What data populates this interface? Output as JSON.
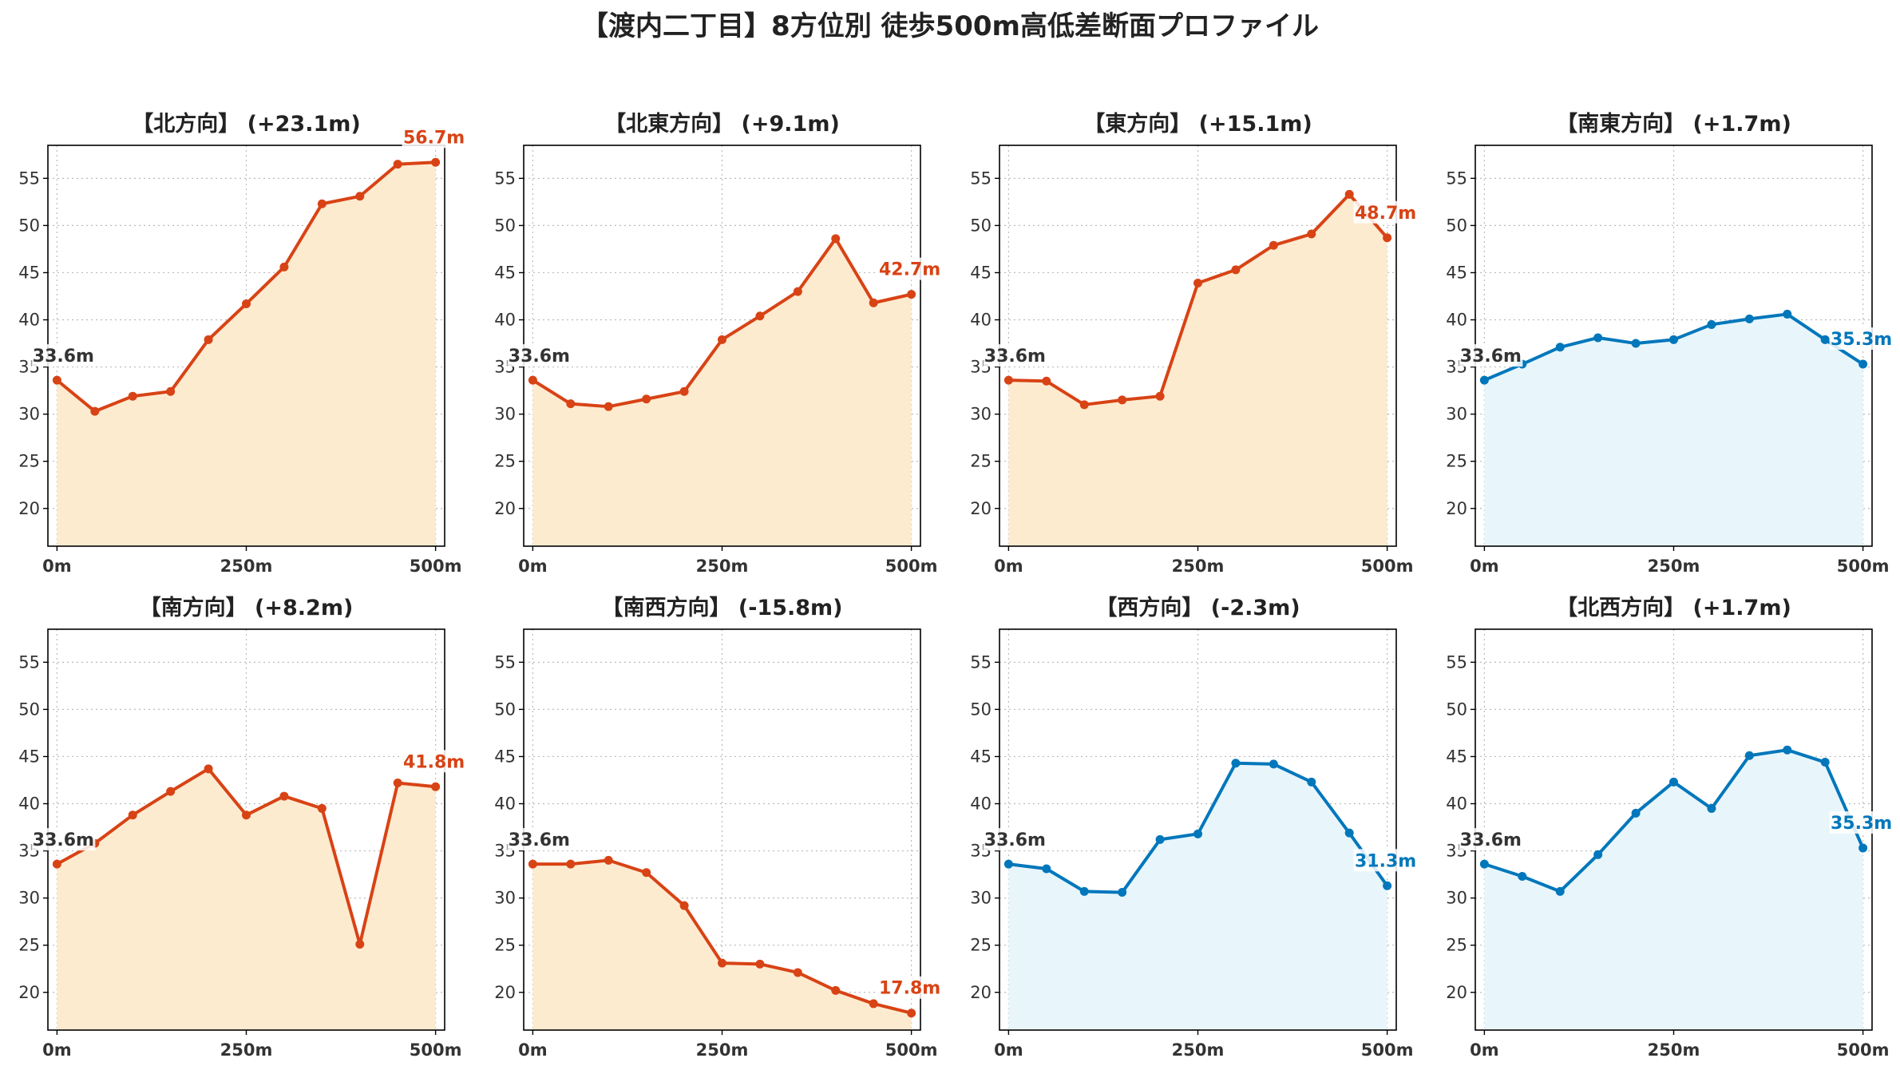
{
  "figure": {
    "title": "【渡内二丁目】8方位別 徒歩500m高低差断面プロファイル"
  },
  "colors": {
    "up": "#d84315",
    "up_fill": "#fdebd0",
    "flat": "#0077bb",
    "flat_fill": "#e8f6fc",
    "grid": "#bbbbbb",
    "text": "#333333"
  },
  "chart_data": [
    {
      "type": "area",
      "title": "【北方向】 (+23.1m)",
      "style": "up",
      "x": [
        0,
        50,
        100,
        150,
        200,
        250,
        300,
        350,
        400,
        450,
        500
      ],
      "values": [
        33.6,
        30.3,
        31.9,
        32.4,
        37.9,
        41.7,
        45.6,
        52.3,
        53.1,
        56.5,
        56.7
      ],
      "xticks": [
        "0m",
        "250m",
        "500m"
      ],
      "xtick_values": [
        0,
        250,
        500
      ],
      "yticks": [
        20,
        25,
        30,
        35,
        40,
        45,
        50,
        55
      ],
      "ylim": [
        16,
        58.5
      ],
      "xlim": [
        -12,
        512
      ],
      "grid": true,
      "start_label": "33.6m",
      "end_label": "56.7m"
    },
    {
      "type": "area",
      "title": "【北東方向】 (+9.1m)",
      "style": "up",
      "x": [
        0,
        50,
        100,
        150,
        200,
        250,
        300,
        350,
        400,
        450,
        500
      ],
      "values": [
        33.6,
        31.1,
        30.8,
        31.6,
        32.4,
        37.9,
        40.4,
        43.0,
        48.6,
        41.8,
        42.7
      ],
      "xticks": [
        "0m",
        "250m",
        "500m"
      ],
      "xtick_values": [
        0,
        250,
        500
      ],
      "yticks": [
        20,
        25,
        30,
        35,
        40,
        45,
        50,
        55
      ],
      "ylim": [
        16,
        58.5
      ],
      "xlim": [
        -12,
        512
      ],
      "grid": true,
      "start_label": "33.6m",
      "end_label": "42.7m"
    },
    {
      "type": "area",
      "title": "【東方向】 (+15.1m)",
      "style": "up",
      "x": [
        0,
        50,
        100,
        150,
        200,
        250,
        300,
        350,
        400,
        450,
        500
      ],
      "values": [
        33.6,
        33.5,
        31.0,
        31.5,
        31.9,
        43.9,
        45.3,
        47.9,
        49.1,
        53.3,
        48.7
      ],
      "xticks": [
        "0m",
        "250m",
        "500m"
      ],
      "xtick_values": [
        0,
        250,
        500
      ],
      "yticks": [
        20,
        25,
        30,
        35,
        40,
        45,
        50,
        55
      ],
      "ylim": [
        16,
        58.5
      ],
      "xlim": [
        -12,
        512
      ],
      "grid": true,
      "start_label": "33.6m",
      "end_label": "48.7m"
    },
    {
      "type": "area",
      "title": "【南東方向】 (+1.7m)",
      "style": "flat",
      "x": [
        0,
        50,
        100,
        150,
        200,
        250,
        300,
        350,
        400,
        450,
        500
      ],
      "values": [
        33.6,
        35.3,
        37.1,
        38.1,
        37.5,
        37.9,
        39.5,
        40.1,
        40.6,
        37.9,
        35.3
      ],
      "xticks": [
        "0m",
        "250m",
        "500m"
      ],
      "xtick_values": [
        0,
        250,
        500
      ],
      "yticks": [
        20,
        25,
        30,
        35,
        40,
        45,
        50,
        55
      ],
      "ylim": [
        16,
        58.5
      ],
      "xlim": [
        -12,
        512
      ],
      "grid": true,
      "start_label": "33.6m",
      "end_label": "35.3m"
    },
    {
      "type": "area",
      "title": "【南方向】 (+8.2m)",
      "style": "up",
      "x": [
        0,
        50,
        100,
        150,
        200,
        250,
        300,
        350,
        400,
        450,
        500
      ],
      "values": [
        33.6,
        35.8,
        38.8,
        41.3,
        43.7,
        38.8,
        40.8,
        39.5,
        25.1,
        42.2,
        41.8
      ],
      "xticks": [
        "0m",
        "250m",
        "500m"
      ],
      "xtick_values": [
        0,
        250,
        500
      ],
      "yticks": [
        20,
        25,
        30,
        35,
        40,
        45,
        50,
        55
      ],
      "ylim": [
        16,
        58.5
      ],
      "xlim": [
        -12,
        512
      ],
      "grid": true,
      "start_label": "33.6m",
      "end_label": "41.8m"
    },
    {
      "type": "area",
      "title": "【南西方向】 (-15.8m)",
      "style": "up",
      "x": [
        0,
        50,
        100,
        150,
        200,
        250,
        300,
        350,
        400,
        450,
        500
      ],
      "values": [
        33.6,
        33.6,
        34.0,
        32.7,
        29.2,
        23.1,
        23.0,
        22.1,
        20.2,
        18.8,
        17.8
      ],
      "xticks": [
        "0m",
        "250m",
        "500m"
      ],
      "xtick_values": [
        0,
        250,
        500
      ],
      "yticks": [
        20,
        25,
        30,
        35,
        40,
        45,
        50,
        55
      ],
      "ylim": [
        16,
        58.5
      ],
      "xlim": [
        -12,
        512
      ],
      "grid": true,
      "start_label": "33.6m",
      "end_label": "17.8m"
    },
    {
      "type": "area",
      "title": "【西方向】 (-2.3m)",
      "style": "flat",
      "x": [
        0,
        50,
        100,
        150,
        200,
        250,
        300,
        350,
        400,
        450,
        500
      ],
      "values": [
        33.6,
        33.1,
        30.7,
        30.6,
        36.2,
        36.8,
        44.3,
        44.2,
        42.3,
        36.9,
        31.3
      ],
      "xticks": [
        "0m",
        "250m",
        "500m"
      ],
      "xtick_values": [
        0,
        250,
        500
      ],
      "yticks": [
        20,
        25,
        30,
        35,
        40,
        45,
        50,
        55
      ],
      "ylim": [
        16,
        58.5
      ],
      "xlim": [
        -12,
        512
      ],
      "grid": true,
      "start_label": "33.6m",
      "end_label": "31.3m"
    },
    {
      "type": "area",
      "title": "【北西方向】 (+1.7m)",
      "style": "flat",
      "x": [
        0,
        50,
        100,
        150,
        200,
        250,
        300,
        350,
        400,
        450,
        500
      ],
      "values": [
        33.6,
        32.3,
        30.7,
        34.6,
        39.0,
        42.3,
        39.5,
        45.1,
        45.7,
        44.4,
        35.3
      ],
      "xticks": [
        "0m",
        "250m",
        "500m"
      ],
      "xtick_values": [
        0,
        250,
        500
      ],
      "yticks": [
        20,
        25,
        30,
        35,
        40,
        45,
        50,
        55
      ],
      "ylim": [
        16,
        58.5
      ],
      "xlim": [
        -12,
        512
      ],
      "grid": true,
      "start_label": "33.6m",
      "end_label": "35.3m"
    }
  ]
}
